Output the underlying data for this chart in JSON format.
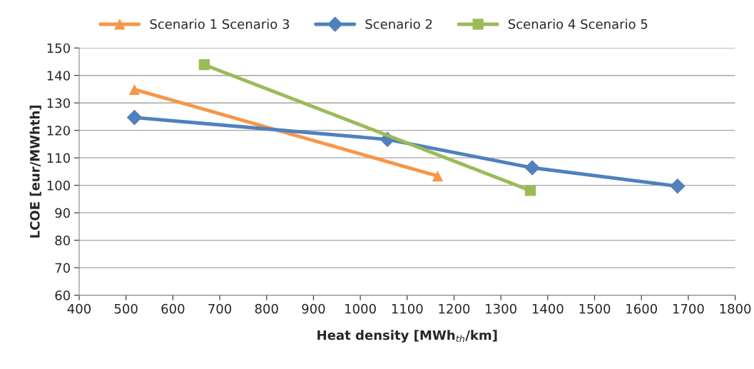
{
  "chart_data": {
    "type": "line",
    "xlabel": "Heat density [MWh$_{th}$/km]",
    "ylabel": "LCOE [eur/MWhth]",
    "series": [
      {
        "name": "Scenario 1 Scenario 3",
        "color": "#f79646",
        "marker": "triangle",
        "x": [
          518,
          1165
        ],
        "values": [
          134.9,
          103.4
        ]
      },
      {
        "name": "Scenario 2",
        "color": "#4f81bd",
        "marker": "diamond",
        "x": [
          518,
          1058,
          1367,
          1677
        ],
        "values": [
          124.7,
          116.7,
          106.4,
          99.7
        ]
      },
      {
        "name": "Scenario 4 Scenario 5",
        "color": "#9bbb59",
        "marker": "square",
        "x": [
          667,
          1363
        ],
        "values": [
          143.9,
          98.1
        ]
      }
    ],
    "xlim": [
      400,
      1800
    ],
    "xticks": [
      400,
      500,
      600,
      700,
      800,
      900,
      1000,
      1100,
      1200,
      1300,
      1400,
      1500,
      1600,
      1700,
      1800
    ],
    "ylim": [
      60,
      150
    ],
    "yticks": [
      60,
      70,
      80,
      90,
      100,
      110,
      120,
      130,
      140,
      150
    ],
    "grid": "y",
    "legend": "top",
    "line_style": "solid"
  }
}
